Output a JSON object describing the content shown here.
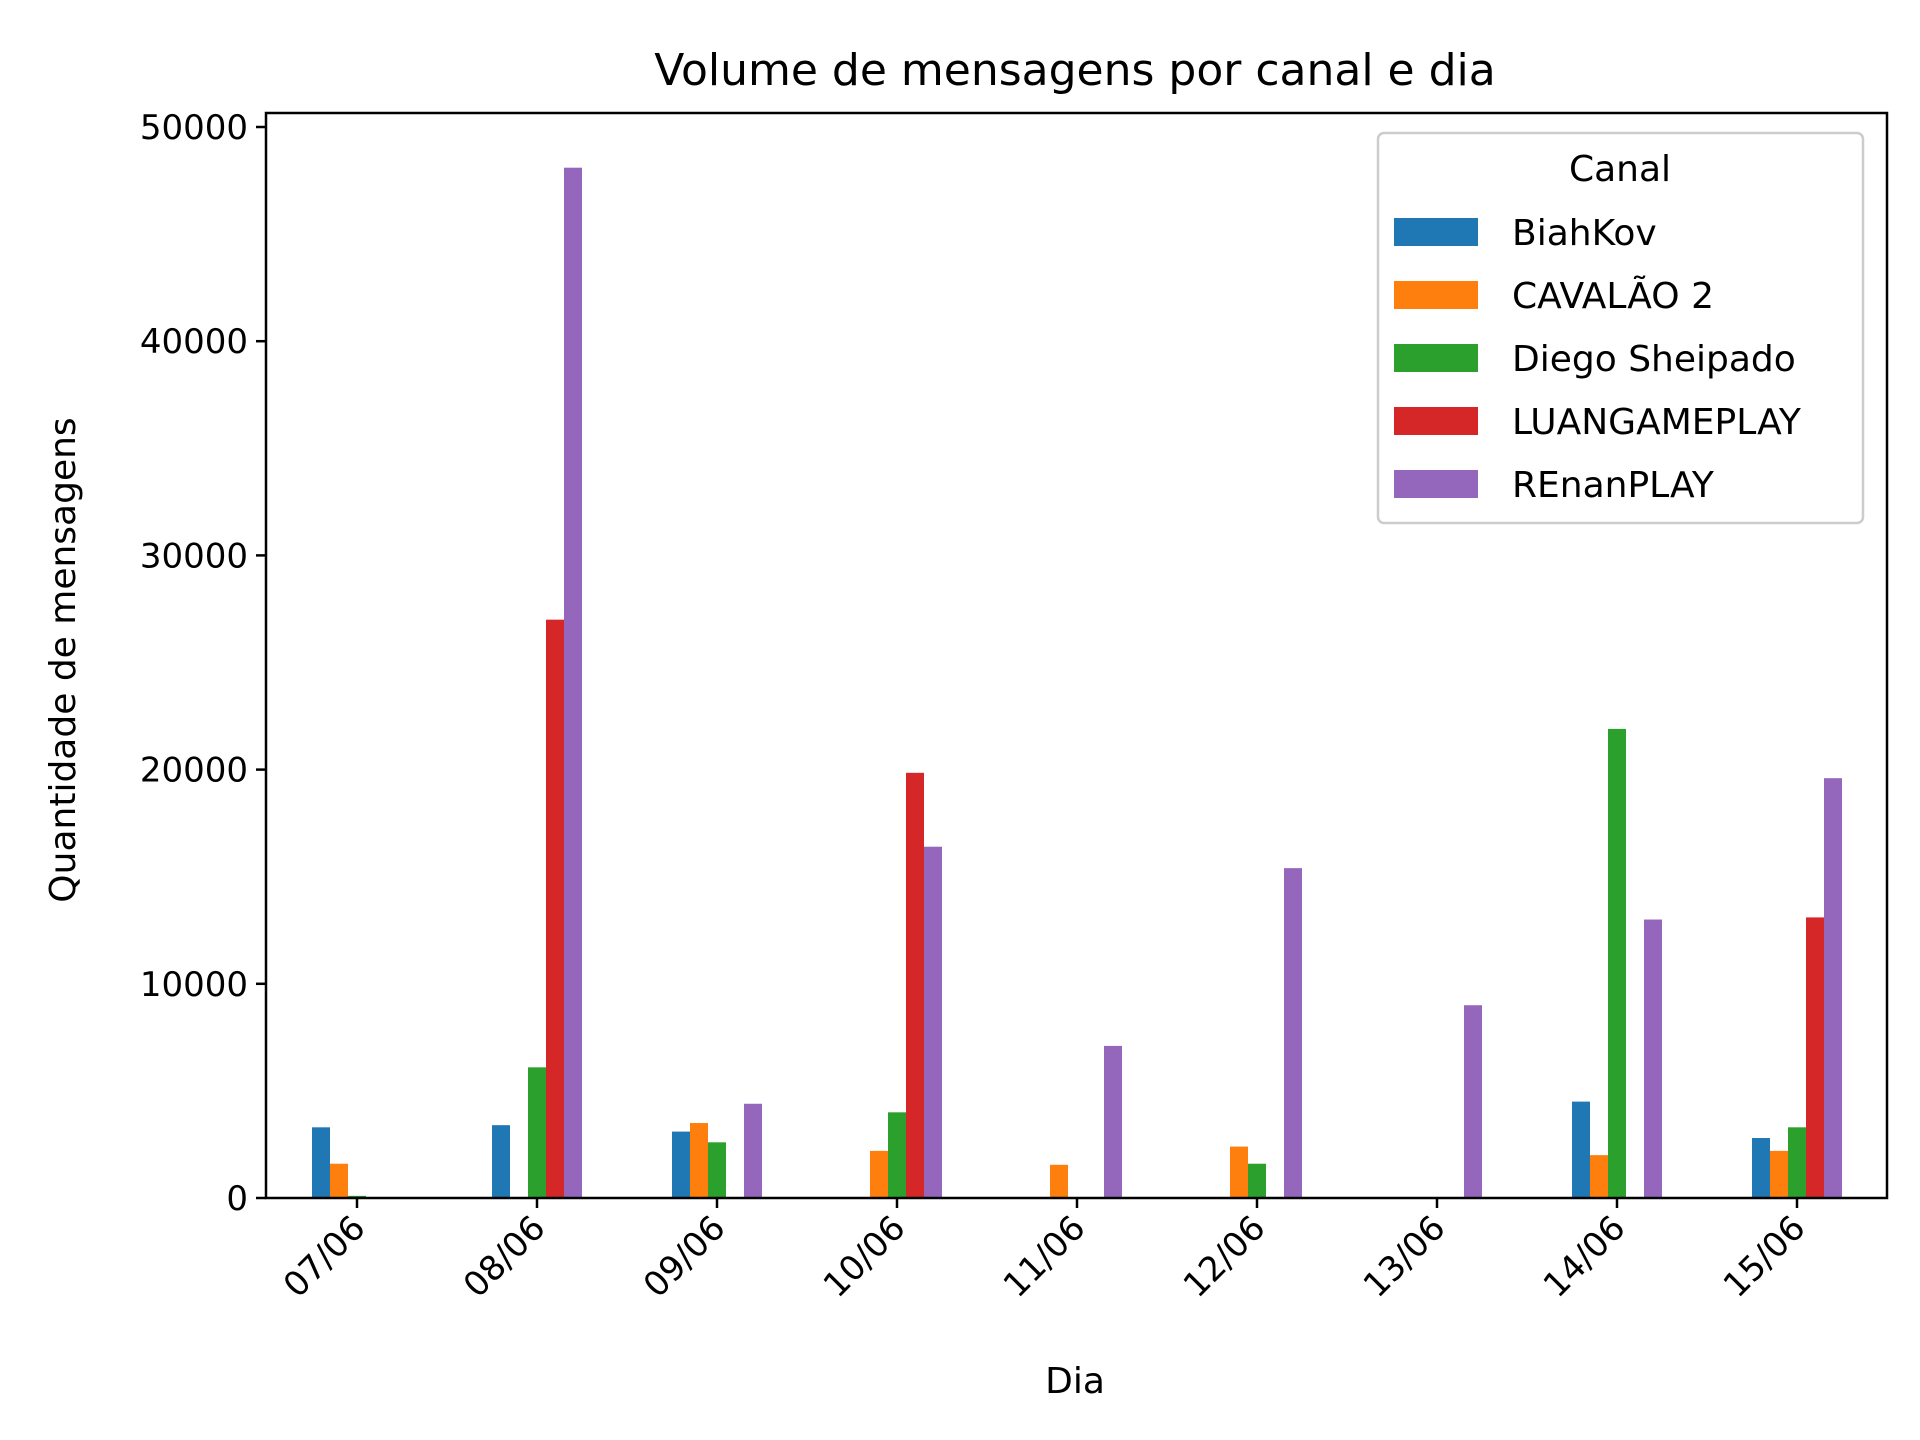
{
  "chart_data": {
    "type": "bar",
    "title": "Volume de mensagens por canal e dia",
    "xlabel": "Dia",
    "ylabel": "Quantidade de mensagens",
    "ylim": [
      0,
      50500
    ],
    "yticks": [
      "0",
      "10000",
      "20000",
      "30000",
      "40000",
      "50000"
    ],
    "ytick_values": [
      0,
      10000,
      20000,
      30000,
      40000,
      50000
    ],
    "categories": [
      "07/06",
      "08/06",
      "09/06",
      "10/06",
      "11/06",
      "12/06",
      "13/06",
      "14/06",
      "15/06"
    ],
    "legend": {
      "title": "Canal",
      "placement": "top-right"
    },
    "grid": false,
    "series": [
      {
        "name": "BiahKov",
        "color": "#1f77b4",
        "values": [
          3300,
          3400,
          3100,
          0,
          0,
          0,
          0,
          4500,
          2800
        ]
      },
      {
        "name": "CAVALÃO 2",
        "color": "#ff7f0e",
        "values": [
          1600,
          0,
          3500,
          2200,
          1550,
          2400,
          0,
          2000,
          2200
        ]
      },
      {
        "name": "Diego Sheipado",
        "color": "#2ca02c",
        "values": [
          100,
          6100,
          2600,
          4000,
          0,
          1600,
          0,
          21900,
          3300
        ]
      },
      {
        "name": "LUANGAMEPLAY",
        "color": "#d62728",
        "values": [
          0,
          27000,
          0,
          19850,
          0,
          0,
          0,
          0,
          13100
        ]
      },
      {
        "name": "REnanPLAY",
        "color": "#9467bd",
        "values": [
          0,
          48100,
          4400,
          16400,
          7100,
          15400,
          9000,
          13000,
          19600
        ]
      }
    ]
  }
}
